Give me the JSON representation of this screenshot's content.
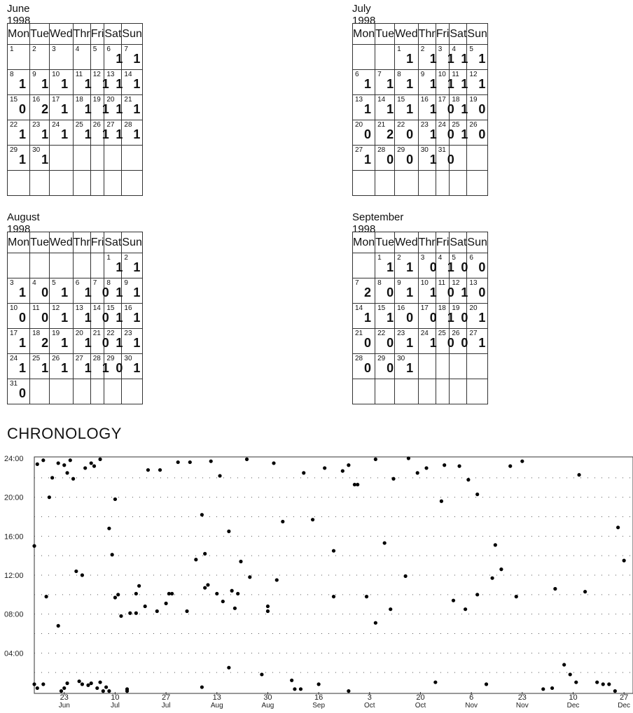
{
  "weekdays": [
    "Mon",
    "Tue",
    "Wed",
    "Thr",
    "Fri",
    "Sat",
    "Sun"
  ],
  "calendars": [
    {
      "title": "June 1998",
      "start": 0,
      "rows": 6,
      "counts": [
        null,
        null,
        null,
        null,
        null,
        1,
        1,
        1,
        1,
        1,
        1,
        1,
        1,
        1,
        0,
        2,
        1,
        1,
        1,
        1,
        1,
        1,
        1,
        1,
        1,
        1,
        1,
        1,
        1,
        1
      ]
    },
    {
      "title": "July 1998",
      "start": 2,
      "rows": 6,
      "counts": [
        1,
        1,
        1,
        1,
        1,
        1,
        1,
        1,
        1,
        1,
        1,
        1,
        1,
        1,
        1,
        1,
        0,
        1,
        0,
        0,
        2,
        0,
        1,
        0,
        1,
        0,
        1,
        0,
        0,
        1,
        0
      ]
    },
    {
      "title": "August 1998",
      "start": 5,
      "rows": 6,
      "counts": [
        1,
        1,
        1,
        0,
        1,
        1,
        0,
        1,
        1,
        0,
        0,
        1,
        1,
        0,
        1,
        1,
        1,
        2,
        1,
        1,
        0,
        1,
        1,
        1,
        1,
        1,
        1,
        1,
        0,
        1,
        0
      ]
    },
    {
      "title": "September 1998",
      "start": 1,
      "rows": 6,
      "counts": [
        1,
        1,
        0,
        1,
        0,
        0,
        2,
        0,
        1,
        1,
        0,
        1,
        0,
        1,
        1,
        0,
        0,
        1,
        0,
        1,
        0,
        0,
        1,
        1,
        0,
        0,
        1,
        0,
        0,
        1
      ]
    }
  ],
  "chart_data": {
    "type": "scatter",
    "title": "CHRONOLOGY",
    "x_start": "1998-06-13",
    "x_end": "1998-12-30",
    "x_ticks": [
      {
        "day": "23",
        "month": "Jun",
        "date": "1998-06-23"
      },
      {
        "day": "10",
        "month": "Jul",
        "date": "1998-07-10"
      },
      {
        "day": "27",
        "month": "Jul",
        "date": "1998-07-27"
      },
      {
        "day": "13",
        "month": "Aug",
        "date": "1998-08-13"
      },
      {
        "day": "30",
        "month": "Aug",
        "date": "1998-08-30"
      },
      {
        "day": "16",
        "month": "Sep",
        "date": "1998-09-16"
      },
      {
        "day": "3",
        "month": "Oct",
        "date": "1998-10-03"
      },
      {
        "day": "20",
        "month": "Oct",
        "date": "1998-10-20"
      },
      {
        "day": "6",
        "month": "Nov",
        "date": "1998-11-06"
      },
      {
        "day": "23",
        "month": "Nov",
        "date": "1998-11-23"
      },
      {
        "day": "10",
        "month": "Dec",
        "date": "1998-12-10"
      },
      {
        "day": "27",
        "month": "Dec",
        "date": "1998-12-27"
      }
    ],
    "y_ticks": [
      "24:00",
      "20:00",
      "16:00",
      "12:00",
      "08:00",
      "04:00"
    ],
    "ylim_hours": [
      0,
      24
    ],
    "grid": true,
    "points": [
      [
        "1998-06-13",
        0.8
      ],
      [
        "1998-06-13",
        15.0
      ],
      [
        "1998-06-14",
        0.4
      ],
      [
        "1998-06-14",
        23.4
      ],
      [
        "1998-06-16",
        23.8
      ],
      [
        "1998-06-16",
        0.8
      ],
      [
        "1998-06-17",
        9.8
      ],
      [
        "1998-06-18",
        20.0
      ],
      [
        "1998-06-19",
        22.0
      ],
      [
        "1998-06-21",
        6.8
      ],
      [
        "1998-06-21",
        23.5
      ],
      [
        "1998-06-22",
        0.1
      ],
      [
        "1998-06-23",
        0.4
      ],
      [
        "1998-06-23",
        23.3
      ],
      [
        "1998-06-24",
        22.5
      ],
      [
        "1998-06-24",
        0.9
      ],
      [
        "1998-06-25",
        23.8
      ],
      [
        "1998-06-26",
        21.9
      ],
      [
        "1998-06-27",
        12.4
      ],
      [
        "1998-06-28",
        1.1
      ],
      [
        "1998-06-29",
        12.0
      ],
      [
        "1998-06-29",
        0.8
      ],
      [
        "1998-06-30",
        23.0
      ],
      [
        "1998-07-01",
        0.7
      ],
      [
        "1998-07-02",
        23.5
      ],
      [
        "1998-07-02",
        0.9
      ],
      [
        "1998-07-03",
        23.2
      ],
      [
        "1998-07-04",
        0.4
      ],
      [
        "1998-07-05",
        23.9
      ],
      [
        "1998-07-05",
        1.0
      ],
      [
        "1998-07-06",
        0.1
      ],
      [
        "1998-07-07",
        0.5
      ],
      [
        "1998-07-08",
        0.1
      ],
      [
        "1998-07-08",
        16.8
      ],
      [
        "1998-07-09",
        14.1
      ],
      [
        "1998-07-10",
        9.7
      ],
      [
        "1998-07-10",
        19.8
      ],
      [
        "1998-07-11",
        10.0
      ],
      [
        "1998-07-12",
        7.8
      ],
      [
        "1998-07-14",
        0.1
      ],
      [
        "1998-07-14",
        0.3
      ],
      [
        "1998-07-15",
        8.1
      ],
      [
        "1998-07-17",
        8.1
      ],
      [
        "1998-07-17",
        10.1
      ],
      [
        "1998-07-18",
        10.9
      ],
      [
        "1998-07-20",
        8.8
      ],
      [
        "1998-07-21",
        22.8
      ],
      [
        "1998-07-24",
        8.3
      ],
      [
        "1998-07-25",
        22.8
      ],
      [
        "1998-07-27",
        9.1
      ],
      [
        "1998-07-28",
        10.1
      ],
      [
        "1998-07-29",
        10.1
      ],
      [
        "1998-07-31",
        23.6
      ],
      [
        "1998-08-03",
        8.3
      ],
      [
        "1998-08-04",
        23.6
      ],
      [
        "1998-08-06",
        13.6
      ],
      [
        "1998-08-08",
        18.2
      ],
      [
        "1998-08-08",
        0.5
      ],
      [
        "1998-08-09",
        14.2
      ],
      [
        "1998-08-09",
        10.7
      ],
      [
        "1998-08-10",
        11.0
      ],
      [
        "1998-08-11",
        23.7
      ],
      [
        "1998-08-13",
        10.1
      ],
      [
        "1998-08-14",
        22.2
      ],
      [
        "1998-08-15",
        9.3
      ],
      [
        "1998-08-17",
        16.5
      ],
      [
        "1998-08-17",
        2.5
      ],
      [
        "1998-08-18",
        10.4
      ],
      [
        "1998-08-19",
        8.6
      ],
      [
        "1998-08-20",
        10.1
      ],
      [
        "1998-08-21",
        13.4
      ],
      [
        "1998-08-23",
        23.9
      ],
      [
        "1998-08-24",
        11.8
      ],
      [
        "1998-08-28",
        1.8
      ],
      [
        "1998-08-30",
        8.3
      ],
      [
        "1998-08-30",
        8.8
      ],
      [
        "1998-09-01",
        23.5
      ],
      [
        "1998-09-02",
        11.5
      ],
      [
        "1998-09-04",
        17.5
      ],
      [
        "1998-09-07",
        1.2
      ],
      [
        "1998-09-08",
        0.3
      ],
      [
        "1998-09-10",
        0.3
      ],
      [
        "1998-09-11",
        22.5
      ],
      [
        "1998-09-14",
        17.7
      ],
      [
        "1998-09-16",
        0.8
      ],
      [
        "1998-09-18",
        23.0
      ],
      [
        "1998-09-21",
        14.5
      ],
      [
        "1998-09-21",
        9.8
      ],
      [
        "1998-09-24",
        22.7
      ],
      [
        "1998-09-26",
        0.1
      ],
      [
        "1998-09-26",
        23.3
      ],
      [
        "1998-09-28",
        21.3
      ],
      [
        "1998-09-29",
        21.3
      ],
      [
        "1998-10-02",
        9.8
      ],
      [
        "1998-10-05",
        7.1
      ],
      [
        "1998-10-05",
        23.9
      ],
      [
        "1998-10-08",
        15.3
      ],
      [
        "1998-10-10",
        8.5
      ],
      [
        "1998-10-11",
        21.9
      ],
      [
        "1998-10-15",
        11.9
      ],
      [
        "1998-10-16",
        24.0
      ],
      [
        "1998-10-19",
        22.5
      ],
      [
        "1998-10-22",
        23.0
      ],
      [
        "1998-10-25",
        1.0
      ],
      [
        "1998-10-27",
        19.6
      ],
      [
        "1998-10-28",
        23.3
      ],
      [
        "1998-10-31",
        9.4
      ],
      [
        "1998-11-02",
        23.2
      ],
      [
        "1998-11-04",
        8.5
      ],
      [
        "1998-11-05",
        21.8
      ],
      [
        "1998-11-08",
        10.0
      ],
      [
        "1998-11-08",
        20.3
      ],
      [
        "1998-11-11",
        0.8
      ],
      [
        "1998-11-13",
        11.7
      ],
      [
        "1998-11-14",
        15.1
      ],
      [
        "1998-11-16",
        12.6
      ],
      [
        "1998-11-19",
        23.2
      ],
      [
        "1998-11-21",
        9.8
      ],
      [
        "1998-11-23",
        23.7
      ],
      [
        "1998-11-30",
        0.3
      ],
      [
        "1998-12-03",
        0.4
      ],
      [
        "1998-12-04",
        10.6
      ],
      [
        "1998-12-07",
        2.8
      ],
      [
        "1998-12-09",
        1.8
      ],
      [
        "1998-12-11",
        1.0
      ],
      [
        "1998-12-12",
        22.3
      ],
      [
        "1998-12-14",
        10.3
      ],
      [
        "1998-12-18",
        1.0
      ],
      [
        "1998-12-20",
        0.8
      ],
      [
        "1998-12-22",
        0.8
      ],
      [
        "1998-12-24",
        0.1
      ],
      [
        "1998-12-25",
        16.9
      ],
      [
        "1998-12-27",
        13.5
      ]
    ]
  }
}
